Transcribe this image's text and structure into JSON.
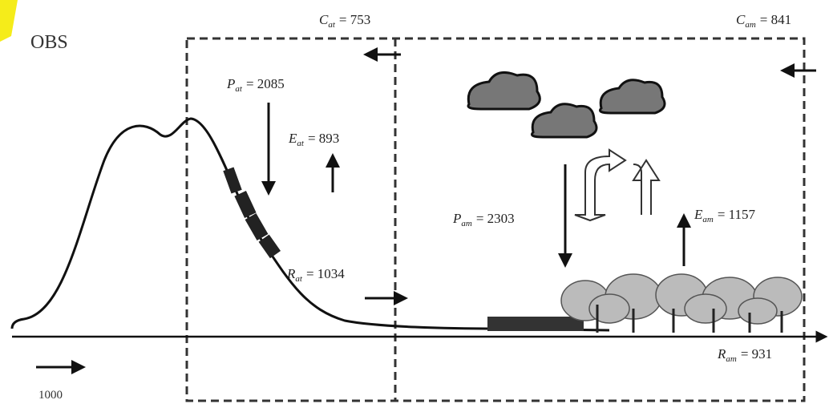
{
  "corner_label": "OBS",
  "labels": {
    "c_at": {
      "symbol": "C",
      "sub": "at",
      "value": "= 753"
    },
    "c_am": {
      "symbol": "C",
      "sub": "am",
      "value": "= 841"
    },
    "p_at": {
      "symbol": "P",
      "sub": "at",
      "value": "= 2085"
    },
    "e_at": {
      "symbol": "E",
      "sub": "at",
      "value": "= 893"
    },
    "r_at": {
      "symbol": "R",
      "sub": "at",
      "value": "= 1034"
    },
    "p_am": {
      "symbol": "P",
      "sub": "am",
      "value": "= 2303"
    },
    "e_am": {
      "symbol": "E",
      "sub": "am",
      "value": "= 1157"
    },
    "r_am": {
      "symbol": "R",
      "sub": "am",
      "value": "= 931"
    }
  },
  "inflow_label": "1000"
}
